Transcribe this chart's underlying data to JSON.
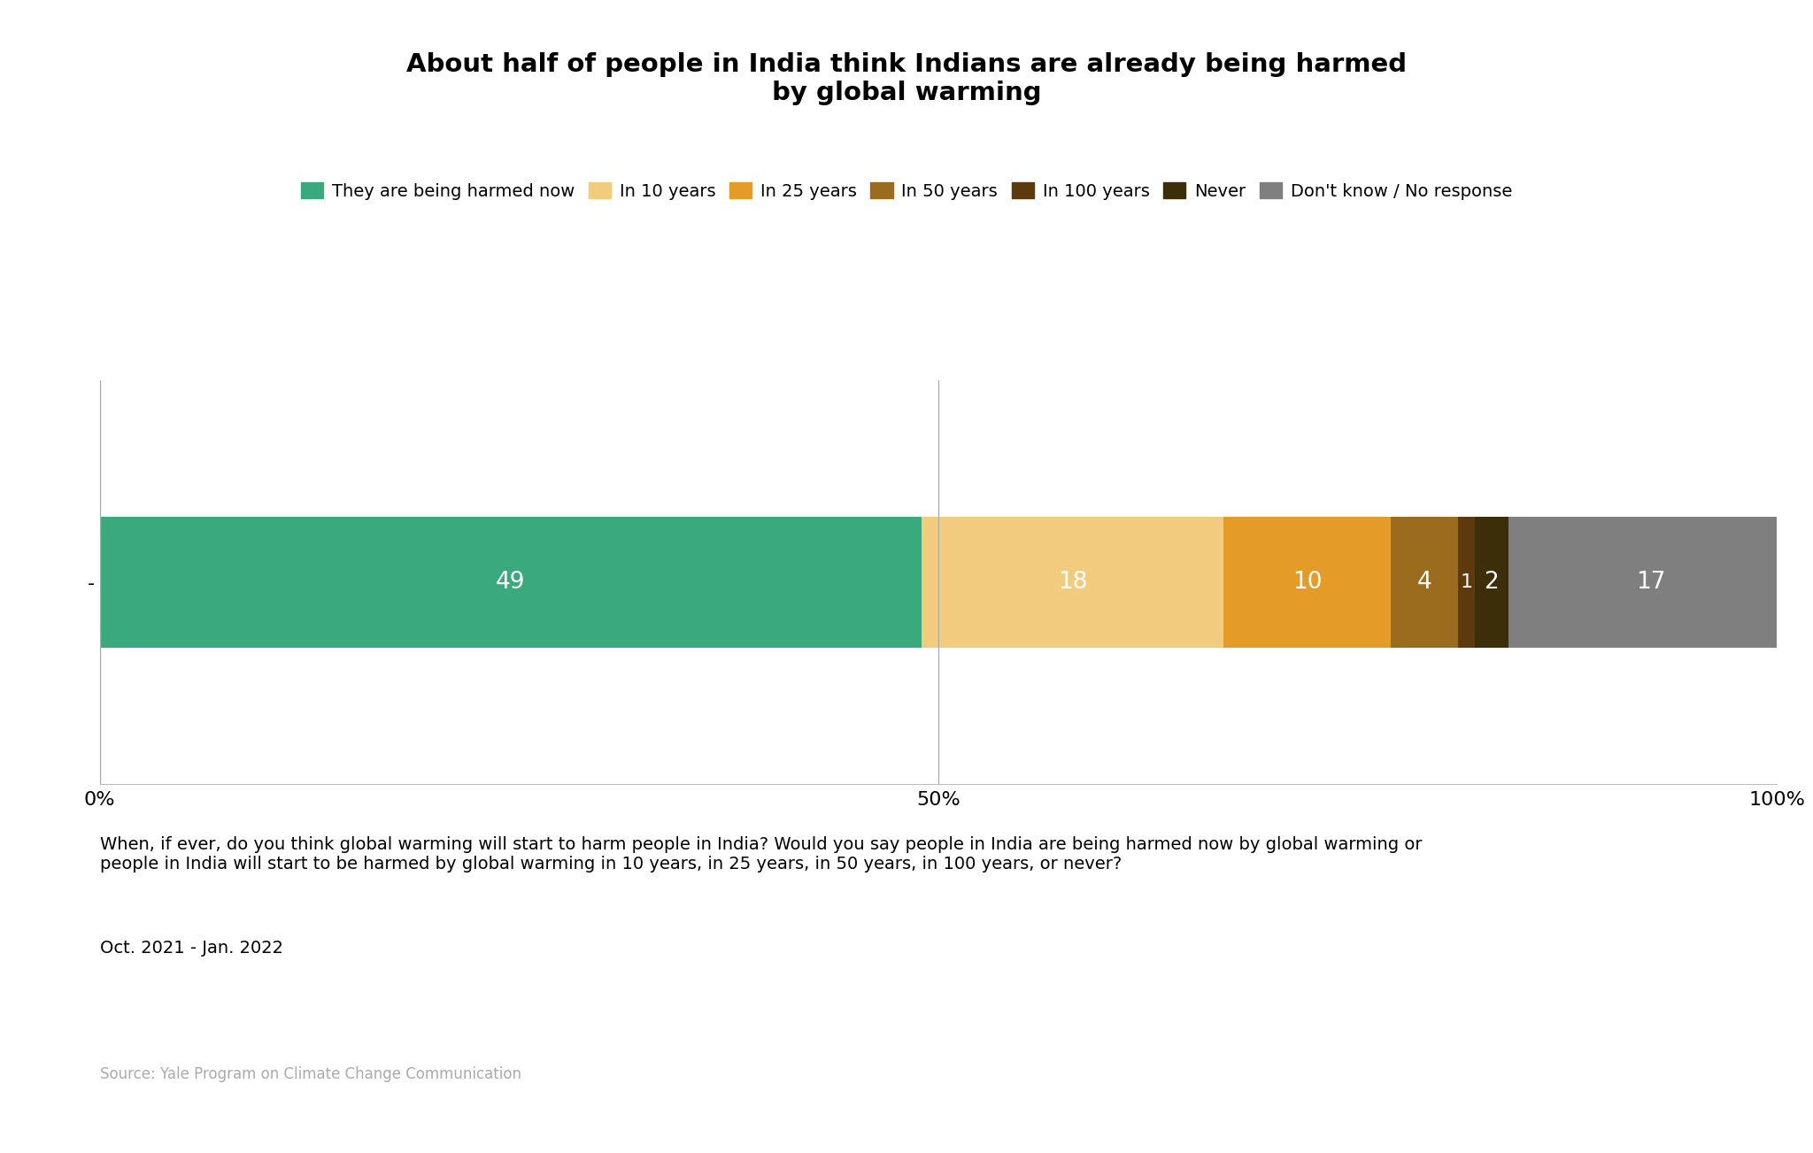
{
  "title": "About half of people in India think Indians are already being harmed\nby global warming",
  "values": [
    49,
    18,
    10,
    4,
    1,
    2,
    17
  ],
  "labels": [
    "They are being harmed now",
    "In 10 years",
    "In 25 years",
    "In 50 years",
    "In 100 years",
    "Never",
    "Don't know / No response"
  ],
  "colors": [
    "#3aaa7e",
    "#f2cb7e",
    "#e49b27",
    "#9b6b1e",
    "#5c3a0e",
    "#3d2e0a",
    "#7f7f7f"
  ],
  "bar_label_color": "#ffffff",
  "bar_label_fontsize": 19,
  "background_color": "#ffffff",
  "question_text": "When, if ever, do you think global warming will start to harm people in India? Would you say people in India are being harmed now by global warming or\npeople in India will start to be harmed by global warming in 10 years, in 25 years, in 50 years, in 100 years, or never?",
  "date_text": "Oct. 2021 - Jan. 2022",
  "source_text": "Source: Yale Program on Climate Change Communication",
  "ylabel_dash": "-",
  "xtick_labels": [
    "0%",
    "50%",
    "100%"
  ],
  "xtick_positions": [
    0,
    50,
    100
  ]
}
